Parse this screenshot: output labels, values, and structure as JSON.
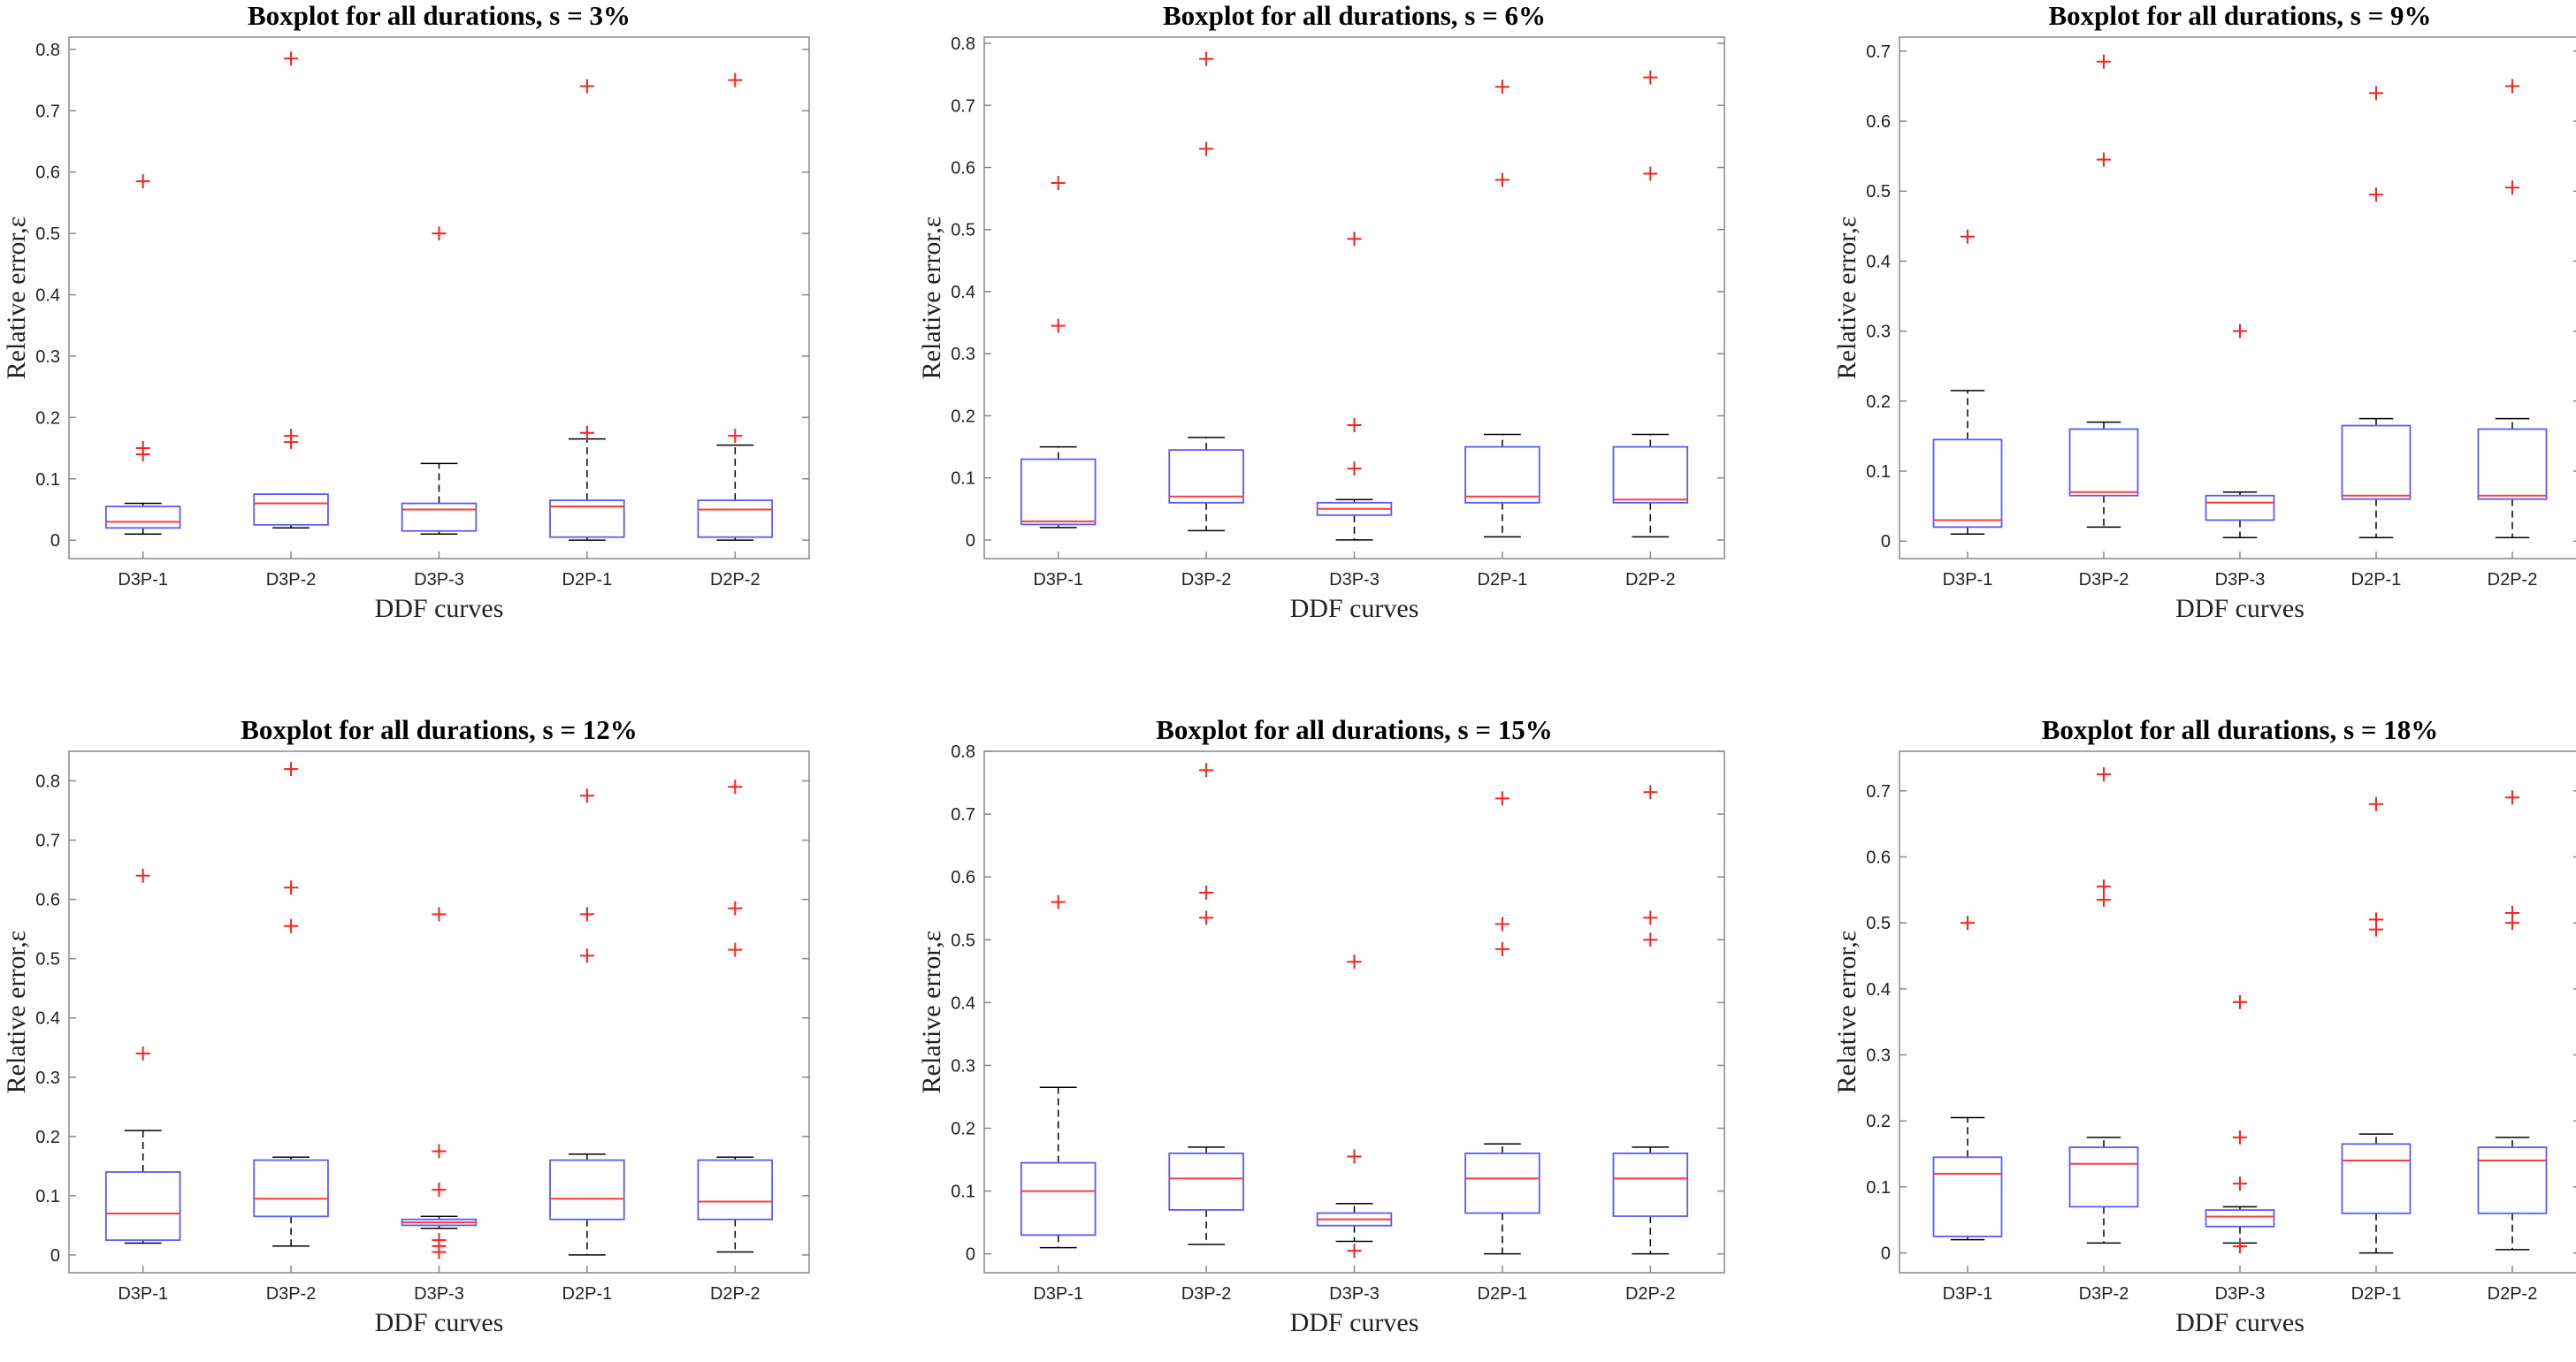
{
  "chart_data": [
    {
      "type": "boxplot",
      "title": "Boxplot for all durations, s = 3%",
      "xlabel": "DDF curves",
      "ylabel": "Relative error,ε",
      "ylim": [
        -0.03,
        0.82
      ],
      "yticks": [
        0,
        0.1,
        0.2,
        0.3,
        0.4,
        0.5,
        0.6,
        0.7,
        0.8
      ],
      "ytick_labels": [
        "0",
        "0.1",
        "0.2",
        "0.3",
        "0.4",
        "0.5",
        "0.6",
        "0.7",
        "0.8"
      ],
      "categories": [
        "D3P-1",
        "D3P-2",
        "D3P-3",
        "D2P-1",
        "D2P-2"
      ],
      "boxes": [
        {
          "whisker_low": 0.01,
          "q1": 0.02,
          "median": 0.03,
          "q3": 0.055,
          "whisker_high": 0.06,
          "outliers": [
            0.14,
            0.15,
            0.585
          ]
        },
        {
          "whisker_low": 0.02,
          "q1": 0.025,
          "median": 0.06,
          "q3": 0.075,
          "whisker_high": 0.075,
          "outliers": [
            0.16,
            0.17,
            0.785
          ]
        },
        {
          "whisker_low": 0.01,
          "q1": 0.015,
          "median": 0.05,
          "q3": 0.06,
          "whisker_high": 0.125,
          "outliers": [
            0.5
          ]
        },
        {
          "whisker_low": 0.0,
          "q1": 0.005,
          "median": 0.055,
          "q3": 0.065,
          "whisker_high": 0.165,
          "outliers": [
            0.175,
            0.74
          ]
        },
        {
          "whisker_low": 0.0,
          "q1": 0.005,
          "median": 0.05,
          "q3": 0.065,
          "whisker_high": 0.155,
          "outliers": [
            0.17,
            0.75
          ]
        }
      ]
    },
    {
      "type": "boxplot",
      "title": "Boxplot for all durations, s = 6%",
      "xlabel": "DDF curves",
      "ylabel": "Relative error,ε",
      "ylim": [
        -0.03,
        0.81
      ],
      "yticks": [
        0,
        0.1,
        0.2,
        0.3,
        0.4,
        0.5,
        0.6,
        0.7,
        0.8
      ],
      "ytick_labels": [
        "0",
        "0.1",
        "0.2",
        "0.3",
        "0.4",
        "0.5",
        "0.6",
        "0.7",
        "0.8"
      ],
      "categories": [
        "D3P-1",
        "D3P-2",
        "D3P-3",
        "D2P-1",
        "D2P-2"
      ],
      "boxes": [
        {
          "whisker_low": 0.02,
          "q1": 0.025,
          "median": 0.03,
          "q3": 0.13,
          "whisker_high": 0.15,
          "outliers": [
            0.345,
            0.575
          ]
        },
        {
          "whisker_low": 0.015,
          "q1": 0.06,
          "median": 0.07,
          "q3": 0.145,
          "whisker_high": 0.165,
          "outliers": [
            0.63,
            0.775
          ]
        },
        {
          "whisker_low": 0.0,
          "q1": 0.04,
          "median": 0.05,
          "q3": 0.06,
          "whisker_high": 0.065,
          "outliers": [
            0.115,
            0.185,
            0.485
          ]
        },
        {
          "whisker_low": 0.005,
          "q1": 0.06,
          "median": 0.07,
          "q3": 0.15,
          "whisker_high": 0.17,
          "outliers": [
            0.58,
            0.73
          ]
        },
        {
          "whisker_low": 0.005,
          "q1": 0.06,
          "median": 0.065,
          "q3": 0.15,
          "whisker_high": 0.17,
          "outliers": [
            0.59,
            0.745
          ]
        }
      ]
    },
    {
      "type": "boxplot",
      "title": "Boxplot for all durations, s = 9%",
      "xlabel": "DDF curves",
      "ylabel": "Relative error,ε",
      "ylim": [
        -0.025,
        0.72
      ],
      "yticks": [
        0,
        0.1,
        0.2,
        0.3,
        0.4,
        0.5,
        0.6,
        0.7
      ],
      "ytick_labels": [
        "0",
        "0.1",
        "0.2",
        "0.3",
        "0.4",
        "0.5",
        "0.6",
        "0.7"
      ],
      "categories": [
        "D3P-1",
        "D3P-2",
        "D3P-3",
        "D2P-1",
        "D2P-2"
      ],
      "boxes": [
        {
          "whisker_low": 0.01,
          "q1": 0.02,
          "median": 0.03,
          "q3": 0.145,
          "whisker_high": 0.215,
          "outliers": [
            0.435
          ]
        },
        {
          "whisker_low": 0.02,
          "q1": 0.065,
          "median": 0.07,
          "q3": 0.16,
          "whisker_high": 0.17,
          "outliers": [
            0.545,
            0.685
          ]
        },
        {
          "whisker_low": 0.005,
          "q1": 0.03,
          "median": 0.055,
          "q3": 0.065,
          "whisker_high": 0.07,
          "outliers": [
            0.3
          ]
        },
        {
          "whisker_low": 0.005,
          "q1": 0.06,
          "median": 0.065,
          "q3": 0.165,
          "whisker_high": 0.175,
          "outliers": [
            0.495,
            0.64
          ]
        },
        {
          "whisker_low": 0.005,
          "q1": 0.06,
          "median": 0.065,
          "q3": 0.16,
          "whisker_high": 0.175,
          "outliers": [
            0.505,
            0.65
          ]
        }
      ]
    },
    {
      "type": "boxplot",
      "title": "Boxplot for all durations, s = 12%",
      "xlabel": "DDF curves",
      "ylabel": "Relative error,ε",
      "ylim": [
        -0.03,
        0.85
      ],
      "yticks": [
        0,
        0.1,
        0.2,
        0.3,
        0.4,
        0.5,
        0.6,
        0.7,
        0.8
      ],
      "ytick_labels": [
        "0",
        "0.1",
        "0.2",
        "0.3",
        "0.4",
        "0.5",
        "0.6",
        "0.7",
        "0.8"
      ],
      "categories": [
        "D3P-1",
        "D3P-2",
        "D3P-3",
        "D2P-1",
        "D2P-2"
      ],
      "boxes": [
        {
          "whisker_low": 0.02,
          "q1": 0.025,
          "median": 0.07,
          "q3": 0.14,
          "whisker_high": 0.21,
          "outliers": [
            0.34,
            0.64
          ]
        },
        {
          "whisker_low": 0.015,
          "q1": 0.065,
          "median": 0.095,
          "q3": 0.16,
          "whisker_high": 0.165,
          "outliers": [
            0.555,
            0.62,
            0.82
          ]
        },
        {
          "whisker_low": 0.045,
          "q1": 0.05,
          "median": 0.055,
          "q3": 0.06,
          "whisker_high": 0.065,
          "outliers": [
            0.005,
            0.015,
            0.025,
            0.11,
            0.175,
            0.575
          ]
        },
        {
          "whisker_low": 0.0,
          "q1": 0.06,
          "median": 0.095,
          "q3": 0.16,
          "whisker_high": 0.17,
          "outliers": [
            0.505,
            0.575,
            0.775
          ]
        },
        {
          "whisker_low": 0.005,
          "q1": 0.06,
          "median": 0.09,
          "q3": 0.16,
          "whisker_high": 0.165,
          "outliers": [
            0.515,
            0.585,
            0.79
          ]
        }
      ]
    },
    {
      "type": "boxplot",
      "title": "Boxplot for all durations, s = 15%",
      "xlabel": "DDF curves",
      "ylabel": "Relative error,ε",
      "ylim": [
        -0.03,
        0.8
      ],
      "yticks": [
        0,
        0.1,
        0.2,
        0.3,
        0.4,
        0.5,
        0.6,
        0.7,
        0.8
      ],
      "ytick_labels": [
        "0",
        "0.1",
        "0.2",
        "0.3",
        "0.4",
        "0.5",
        "0.6",
        "0.7",
        "0.8"
      ],
      "categories": [
        "D3P-1",
        "D3P-2",
        "D3P-3",
        "D2P-1",
        "D2P-2"
      ],
      "boxes": [
        {
          "whisker_low": 0.01,
          "q1": 0.03,
          "median": 0.1,
          "q3": 0.145,
          "whisker_high": 0.265,
          "outliers": [
            0.56
          ]
        },
        {
          "whisker_low": 0.015,
          "q1": 0.07,
          "median": 0.12,
          "q3": 0.16,
          "whisker_high": 0.17,
          "outliers": [
            0.535,
            0.575,
            0.77
          ]
        },
        {
          "whisker_low": 0.02,
          "q1": 0.045,
          "median": 0.055,
          "q3": 0.065,
          "whisker_high": 0.08,
          "outliers": [
            0.005,
            0.155,
            0.465
          ]
        },
        {
          "whisker_low": 0.0,
          "q1": 0.065,
          "median": 0.12,
          "q3": 0.16,
          "whisker_high": 0.175,
          "outliers": [
            0.485,
            0.525,
            0.725
          ]
        },
        {
          "whisker_low": 0.0,
          "q1": 0.06,
          "median": 0.12,
          "q3": 0.16,
          "whisker_high": 0.17,
          "outliers": [
            0.5,
            0.535,
            0.735
          ]
        }
      ]
    },
    {
      "type": "boxplot",
      "title": "Boxplot for all durations, s = 18%",
      "xlabel": "DDF curves",
      "ylabel": "Relative error,ε",
      "ylim": [
        -0.03,
        0.76
      ],
      "yticks": [
        0,
        0.1,
        0.2,
        0.3,
        0.4,
        0.5,
        0.6,
        0.7
      ],
      "ytick_labels": [
        "0",
        "0.1",
        "0.2",
        "0.3",
        "0.4",
        "0.5",
        "0.6",
        "0.7"
      ],
      "categories": [
        "D3P-1",
        "D3P-2",
        "D3P-3",
        "D2P-1",
        "D2P-2"
      ],
      "boxes": [
        {
          "whisker_low": 0.02,
          "q1": 0.025,
          "median": 0.12,
          "q3": 0.145,
          "whisker_high": 0.205,
          "outliers": [
            0.5
          ]
        },
        {
          "whisker_low": 0.015,
          "q1": 0.07,
          "median": 0.135,
          "q3": 0.16,
          "whisker_high": 0.175,
          "outliers": [
            0.535,
            0.555,
            0.725
          ]
        },
        {
          "whisker_low": 0.015,
          "q1": 0.04,
          "median": 0.055,
          "q3": 0.065,
          "whisker_high": 0.07,
          "outliers": [
            0.01,
            0.105,
            0.175,
            0.38
          ]
        },
        {
          "whisker_low": 0.0,
          "q1": 0.06,
          "median": 0.14,
          "q3": 0.165,
          "whisker_high": 0.18,
          "outliers": [
            0.49,
            0.505,
            0.68
          ]
        },
        {
          "whisker_low": 0.005,
          "q1": 0.06,
          "median": 0.14,
          "q3": 0.16,
          "whisker_high": 0.175,
          "outliers": [
            0.5,
            0.515,
            0.69
          ]
        }
      ]
    }
  ],
  "colors": {
    "box": "#5a5aff",
    "median": "#ff3b3b",
    "outlier": "#ff2020",
    "whisker": "#000000",
    "axis": "#888888"
  }
}
